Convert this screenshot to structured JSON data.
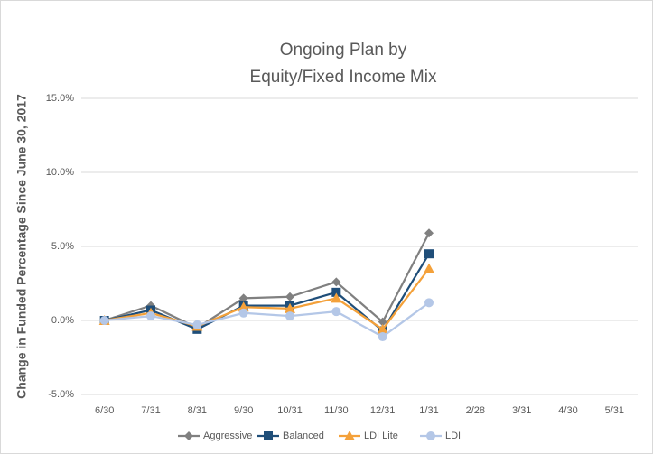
{
  "chart_data": {
    "type": "line",
    "title": [
      "Ongoing Plan by",
      "Equity/Fixed Income Mix"
    ],
    "y_label": "Change in Funded Percentage Since June 30, 2017",
    "categories": [
      "6/30",
      "7/31",
      "8/31",
      "9/30",
      "10/31",
      "11/30",
      "12/31",
      "1/31",
      "2/28",
      "3/31",
      "4/30",
      "5/31"
    ],
    "series": [
      {
        "name": "Aggressive",
        "color": "#808080",
        "marker": "diamond",
        "values": [
          0,
          1.0,
          -0.5,
          1.5,
          1.6,
          2.6,
          -0.1,
          5.9,
          null,
          null,
          null,
          null
        ]
      },
      {
        "name": "Balanced",
        "color": "#1f4e79",
        "marker": "square",
        "values": [
          0,
          0.7,
          -0.6,
          1.0,
          1.0,
          1.9,
          -0.7,
          4.5,
          null,
          null,
          null,
          null
        ]
      },
      {
        "name": "LDI Lite",
        "color": "#f4a13a",
        "marker": "triangle",
        "values": [
          0,
          0.5,
          -0.4,
          0.9,
          0.8,
          1.5,
          -0.6,
          3.5,
          null,
          null,
          null,
          null
        ]
      },
      {
        "name": "LDI",
        "color": "#b4c7e7",
        "marker": "circle",
        "values": [
          0,
          0.3,
          -0.3,
          0.5,
          0.3,
          0.6,
          -1.1,
          1.2,
          null,
          null,
          null,
          null
        ]
      }
    ],
    "ylim": [
      -5,
      15
    ],
    "yticks": [
      {
        "value": -5,
        "label": "-5.0%"
      },
      {
        "value": 0,
        "label": "0.0%"
      },
      {
        "value": 5,
        "label": "5.0%"
      },
      {
        "value": 10,
        "label": "10.0%"
      },
      {
        "value": 15,
        "label": "15.0%"
      }
    ],
    "grid": true,
    "legend": "bottom"
  }
}
